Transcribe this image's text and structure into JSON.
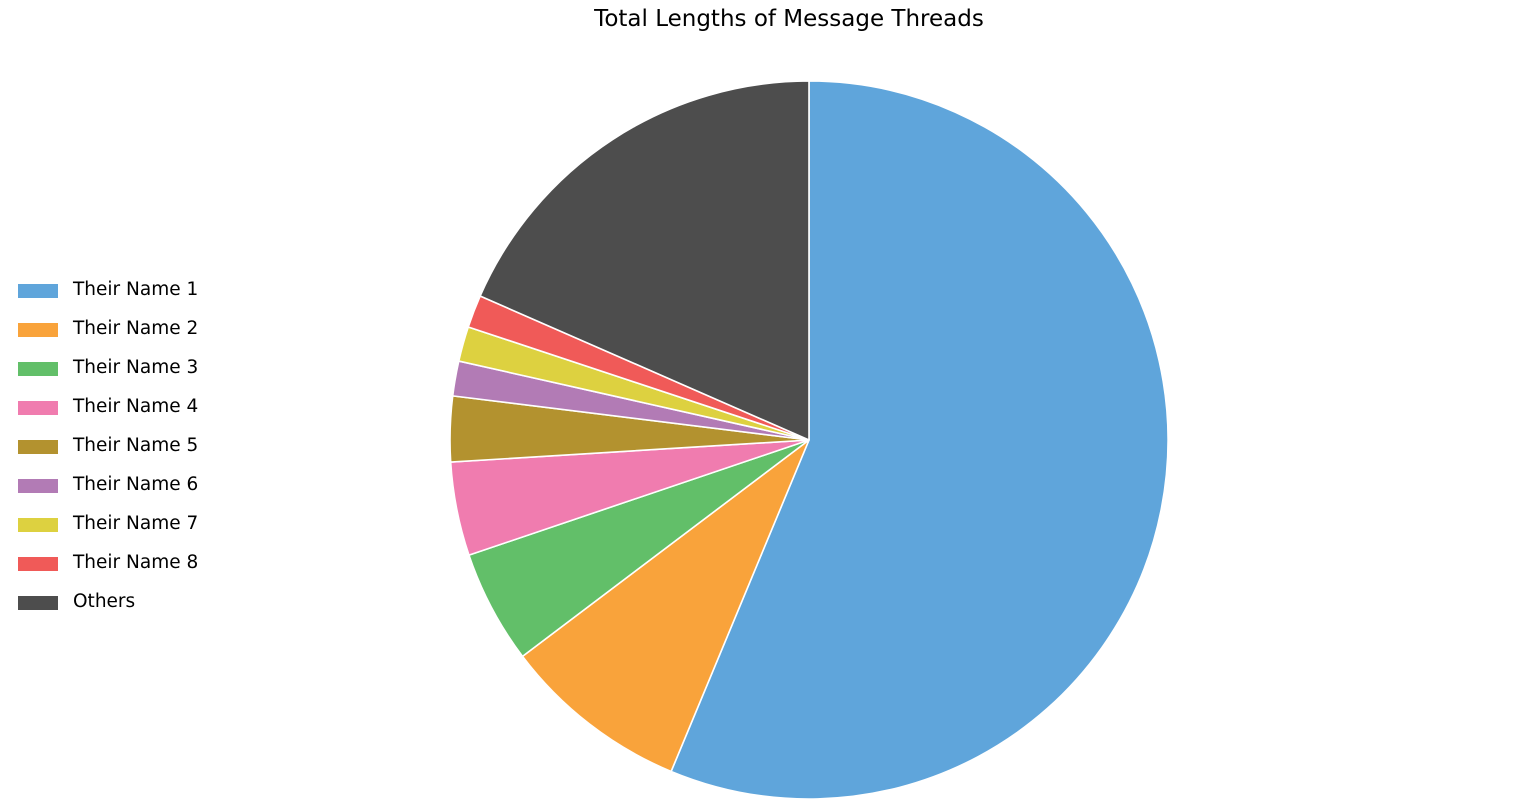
{
  "chart_data": {
    "type": "pie",
    "title": "Total Lengths of Message Threads",
    "legend_position": "left",
    "start_angle": "top, clockwise",
    "labels": [
      "Their Name 1",
      "Their Name 2",
      "Their Name 3",
      "Their Name 4",
      "Their Name 5",
      "Their Name 6",
      "Their Name 7",
      "Their Name 8",
      "Others"
    ],
    "values": [
      57.4,
      8.6,
      5.2,
      4.3,
      3.0,
      1.6,
      1.6,
      1.5,
      18.8
    ],
    "colors": [
      "#5fa5db",
      "#f9a33b",
      "#62bf69",
      "#f07caf",
      "#b3922f",
      "#b27bb5",
      "#ddd140",
      "#f05a58",
      "#4d4d4d"
    ],
    "edge_color": "#ffffff"
  }
}
